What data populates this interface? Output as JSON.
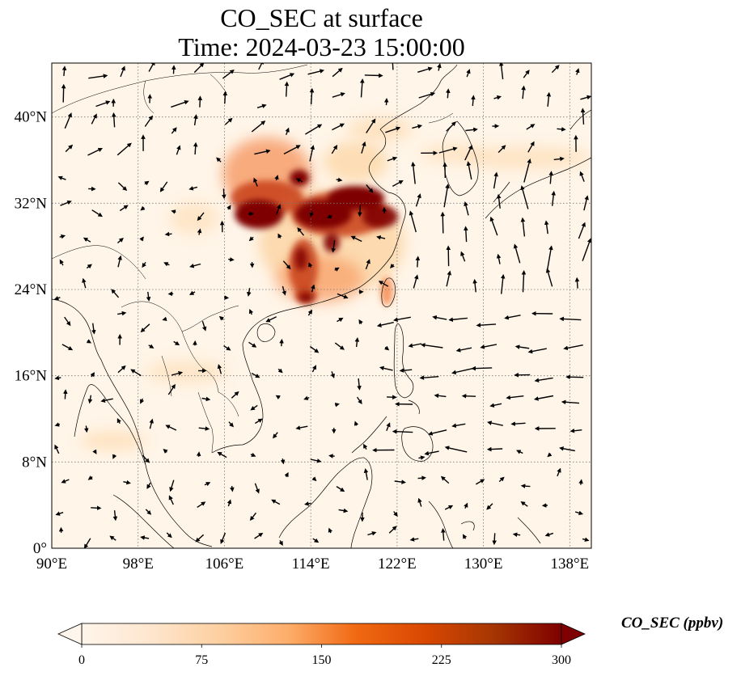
{
  "title": {
    "line1": "CO_SEC at surface",
    "line2": "Time: 2024-03-23 15:00:00"
  },
  "map": {
    "lon_range": [
      90,
      140
    ],
    "lat_range": [
      0,
      45
    ],
    "x_ticks": [
      {
        "value": 90,
        "label": "90°E"
      },
      {
        "value": 98,
        "label": "98°E"
      },
      {
        "value": 106,
        "label": "106°E"
      },
      {
        "value": 114,
        "label": "114°E"
      },
      {
        "value": 122,
        "label": "122°E"
      },
      {
        "value": 130,
        "label": "130°E"
      },
      {
        "value": 138,
        "label": "138°E"
      }
    ],
    "y_ticks": [
      {
        "value": 0,
        "label": "0°"
      },
      {
        "value": 8,
        "label": "8°N"
      },
      {
        "value": 16,
        "label": "16°N"
      },
      {
        "value": 24,
        "label": "24°N"
      },
      {
        "value": 32,
        "label": "32°N"
      },
      {
        "value": 40,
        "label": "40°N"
      }
    ],
    "gridlines": true,
    "field_colors": {
      "background": "#fff5e8",
      "low": "#fdd7a8",
      "mid": "#f6925a",
      "high": "#c8401a",
      "max": "#7f0000"
    }
  },
  "colorbar": {
    "label": "CO_SEC (ppbv)",
    "min": 0,
    "max": 300,
    "extend": "both",
    "ticks": [
      {
        "value": 0,
        "label": "0"
      },
      {
        "value": 75,
        "label": "75"
      },
      {
        "value": 150,
        "label": "150"
      },
      {
        "value": 225,
        "label": "225"
      },
      {
        "value": 300,
        "label": "300"
      }
    ],
    "stops": [
      "#fff5eb",
      "#fee6ce",
      "#fdd0a2",
      "#fdae6b",
      "#f16913",
      "#d94801",
      "#a63603",
      "#7f0000"
    ]
  }
}
